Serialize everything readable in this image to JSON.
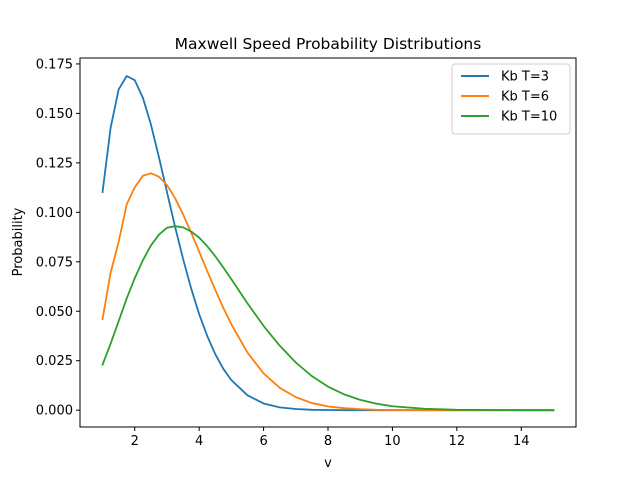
{
  "chart_data": {
    "type": "line",
    "title": "Maxwell Speed Probability Distributions",
    "xlabel": "v",
    "ylabel": "Probability",
    "xlim": [
      0.3,
      15.7
    ],
    "ylim": [
      -0.0085,
      0.178
    ],
    "x_ticks": [
      2,
      4,
      6,
      8,
      10,
      12,
      14
    ],
    "x_tick_labels": [
      "2",
      "4",
      "6",
      "8",
      "10",
      "12",
      "14"
    ],
    "y_ticks": [
      0.0,
      0.025,
      0.05,
      0.075,
      0.1,
      0.125,
      0.15,
      0.175
    ],
    "y_tick_labels": [
      "0.000",
      "0.025",
      "0.050",
      "0.075",
      "0.100",
      "0.125",
      "0.150",
      "0.175"
    ],
    "grid": false,
    "legend_position": "top-right",
    "x": [
      1,
      1.25,
      1.5,
      1.75,
      2,
      2.25,
      2.5,
      2.75,
      3,
      3.25,
      3.5,
      3.75,
      4,
      4.25,
      4.5,
      4.75,
      5,
      5.5,
      6,
      6.5,
      7,
      7.5,
      8,
      8.5,
      9,
      9.5,
      10,
      11,
      12,
      13,
      14,
      15
    ],
    "series": [
      {
        "name": "Kb T=3",
        "color": "#1f77b4",
        "values": [
          0.1102,
          0.1427,
          0.1621,
          0.1689,
          0.1668,
          0.158,
          0.1445,
          0.1279,
          0.1103,
          0.0928,
          0.0765,
          0.0616,
          0.0485,
          0.0375,
          0.0283,
          0.0209,
          0.0152,
          0.0075,
          0.0034,
          0.0014,
          0.0006,
          0.0002,
          0.0001,
          0.0,
          0.0,
          0.0,
          0.0,
          0.0,
          0.0,
          0.0,
          0.0,
          0.0
        ]
      },
      {
        "name": "Kb T=6",
        "color": "#ff7f0e",
        "values": [
          0.046,
          0.0694,
          0.0851,
          0.104,
          0.1126,
          0.1185,
          0.1197,
          0.118,
          0.1138,
          0.1072,
          0.099,
          0.0898,
          0.0801,
          0.0703,
          0.0608,
          0.0517,
          0.0434,
          0.0291,
          0.0186,
          0.0113,
          0.0066,
          0.0036,
          0.0019,
          0.001,
          0.0005,
          0.0002,
          0.0001,
          0.0,
          0.0,
          0.0,
          0.0,
          0.0
        ]
      },
      {
        "name": "Kb T=10",
        "color": "#2ca02c",
        "values": [
          0.023,
          0.0336,
          0.045,
          0.0565,
          0.0667,
          0.0757,
          0.0832,
          0.0887,
          0.0922,
          0.093,
          0.0924,
          0.0903,
          0.0872,
          0.0829,
          0.0778,
          0.0721,
          0.0662,
          0.054,
          0.0426,
          0.0326,
          0.0241,
          0.0172,
          0.0119,
          0.008,
          0.0052,
          0.0033,
          0.002,
          0.0007,
          0.0002,
          0.0001,
          0.0,
          0.0
        ]
      }
    ]
  }
}
